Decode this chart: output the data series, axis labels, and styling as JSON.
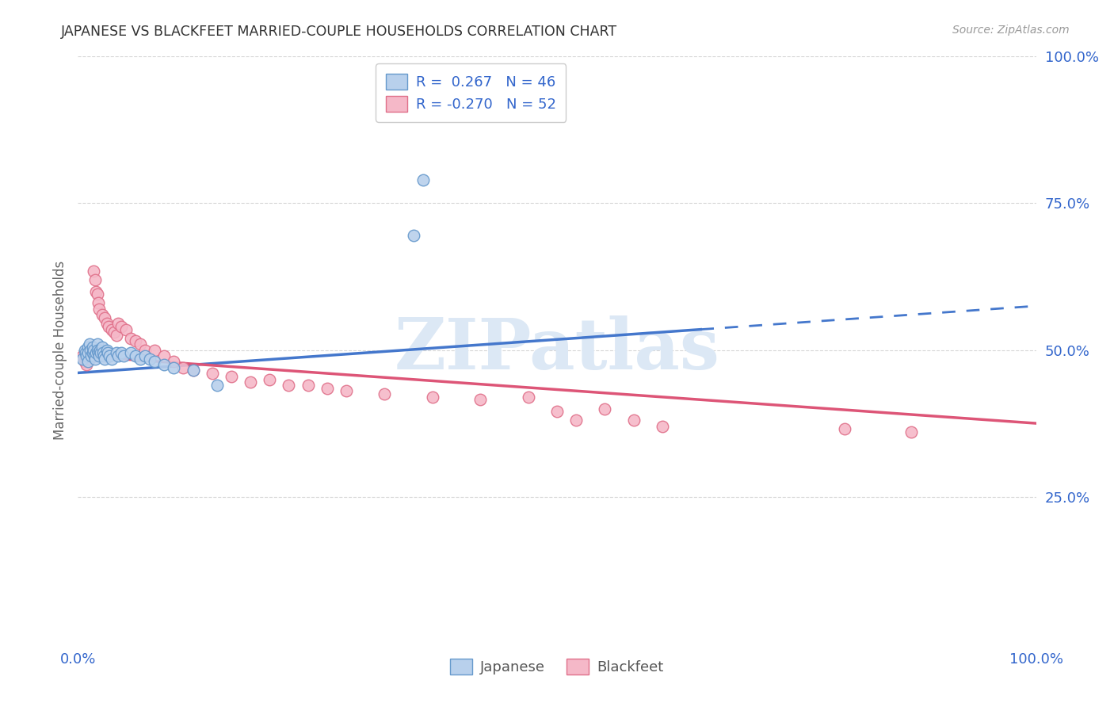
{
  "title": "JAPANESE VS BLACKFEET MARRIED-COUPLE HOUSEHOLDS CORRELATION CHART",
  "source": "Source: ZipAtlas.com",
  "ylabel": "Married-couple Households",
  "xlim": [
    0.0,
    1.0
  ],
  "ylim": [
    0.0,
    1.0
  ],
  "yticks": [
    0.25,
    0.5,
    0.75,
    1.0
  ],
  "ytick_labels": [
    "25.0%",
    "50.0%",
    "75.0%",
    "100.0%"
  ],
  "xtick_left": "0.0%",
  "xtick_right": "100.0%",
  "watermark": "ZIPatlas",
  "legend_japanese_R": " 0.267",
  "legend_japanese_N": "46",
  "legend_blackfeet_R": "-0.270",
  "legend_blackfeet_N": "52",
  "japanese_fill": "#b8d0ec",
  "japanese_edge": "#6699cc",
  "blackfeet_fill": "#f5b8c8",
  "blackfeet_edge": "#e0708a",
  "trendline_blue": "#4477cc",
  "trendline_pink": "#dd5577",
  "grid_color": "#cccccc",
  "title_color": "#333333",
  "source_color": "#999999",
  "axis_tick_color": "#3366cc",
  "ylabel_color": "#666666",
  "watermark_color": "#dce8f5",
  "background": "#ffffff",
  "japanese_x": [
    0.005,
    0.007,
    0.008,
    0.009,
    0.01,
    0.01,
    0.01,
    0.012,
    0.013,
    0.014,
    0.015,
    0.015,
    0.016,
    0.017,
    0.018,
    0.019,
    0.02,
    0.02,
    0.021,
    0.022,
    0.023,
    0.024,
    0.025,
    0.026,
    0.027,
    0.028,
    0.03,
    0.031,
    0.033,
    0.035,
    0.04,
    0.042,
    0.045,
    0.048,
    0.055,
    0.06,
    0.065,
    0.07,
    0.075,
    0.08,
    0.09,
    0.1,
    0.12,
    0.145,
    0.35,
    0.36
  ],
  "japanese_y": [
    0.485,
    0.5,
    0.495,
    0.49,
    0.505,
    0.495,
    0.48,
    0.51,
    0.5,
    0.49,
    0.505,
    0.495,
    0.5,
    0.49,
    0.485,
    0.495,
    0.51,
    0.5,
    0.495,
    0.49,
    0.5,
    0.495,
    0.505,
    0.495,
    0.49,
    0.485,
    0.5,
    0.495,
    0.49,
    0.485,
    0.495,
    0.49,
    0.495,
    0.49,
    0.495,
    0.49,
    0.485,
    0.49,
    0.485,
    0.48,
    0.475,
    0.47,
    0.465,
    0.44,
    0.695,
    0.79
  ],
  "blackfeet_x": [
    0.005,
    0.007,
    0.008,
    0.009,
    0.01,
    0.012,
    0.013,
    0.015,
    0.016,
    0.018,
    0.019,
    0.02,
    0.021,
    0.022,
    0.025,
    0.028,
    0.03,
    0.032,
    0.035,
    0.038,
    0.04,
    0.042,
    0.045,
    0.05,
    0.055,
    0.06,
    0.065,
    0.07,
    0.08,
    0.09,
    0.1,
    0.11,
    0.12,
    0.14,
    0.16,
    0.18,
    0.2,
    0.22,
    0.24,
    0.26,
    0.28,
    0.32,
    0.37,
    0.42,
    0.47,
    0.5,
    0.52,
    0.55,
    0.58,
    0.61,
    0.8,
    0.87
  ],
  "blackfeet_y": [
    0.49,
    0.48,
    0.485,
    0.475,
    0.49,
    0.485,
    0.495,
    0.5,
    0.635,
    0.62,
    0.6,
    0.595,
    0.58,
    0.57,
    0.56,
    0.555,
    0.545,
    0.54,
    0.535,
    0.53,
    0.525,
    0.545,
    0.54,
    0.535,
    0.52,
    0.515,
    0.51,
    0.5,
    0.5,
    0.49,
    0.48,
    0.47,
    0.465,
    0.46,
    0.455,
    0.445,
    0.45,
    0.44,
    0.44,
    0.435,
    0.43,
    0.425,
    0.42,
    0.415,
    0.42,
    0.395,
    0.38,
    0.4,
    0.38,
    0.37,
    0.365,
    0.36
  ],
  "trendline_blue_x0": 0.0,
  "trendline_blue_y0": 0.461,
  "trendline_blue_x1": 0.65,
  "trendline_blue_y1": 0.535,
  "trendline_blue_dash_x0": 0.65,
  "trendline_blue_dash_y0": 0.535,
  "trendline_blue_dash_x1": 1.0,
  "trendline_blue_dash_y1": 0.575,
  "trendline_pink_x0": 0.0,
  "trendline_pink_y0": 0.49,
  "trendline_pink_x1": 1.0,
  "trendline_pink_y1": 0.375
}
